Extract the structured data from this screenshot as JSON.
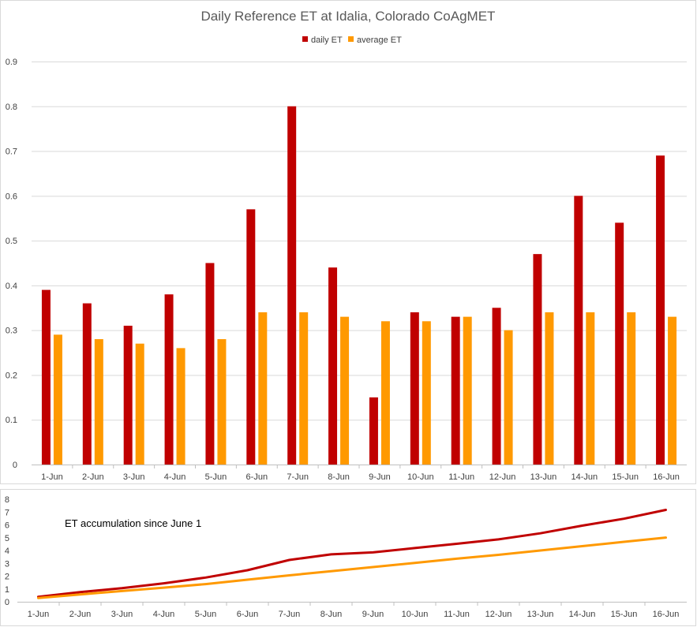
{
  "chart_data": [
    {
      "type": "bar",
      "title": "Daily Reference ET at Idalia, Colorado CoAgMET",
      "xlabel": "",
      "ylabel": "",
      "categories": [
        "1-Jun",
        "2-Jun",
        "3-Jun",
        "4-Jun",
        "5-Jun",
        "6-Jun",
        "7-Jun",
        "8-Jun",
        "9-Jun",
        "10-Jun",
        "11-Jun",
        "12-Jun",
        "13-Jun",
        "14-Jun",
        "15-Jun",
        "16-Jun"
      ],
      "series": [
        {
          "name": "daily ET",
          "color": "#c00000",
          "values": [
            0.39,
            0.36,
            0.31,
            0.38,
            0.45,
            0.57,
            0.8,
            0.44,
            0.15,
            0.34,
            0.33,
            0.35,
            0.47,
            0.6,
            0.54,
            0.69
          ]
        },
        {
          "name": "average ET",
          "color": "#ff9900",
          "values": [
            0.29,
            0.28,
            0.27,
            0.26,
            0.28,
            0.34,
            0.34,
            0.33,
            0.32,
            0.32,
            0.33,
            0.3,
            0.34,
            0.34,
            0.34,
            0.33
          ]
        }
      ],
      "ylim": [
        0,
        0.9
      ],
      "yticks": [
        "0",
        "0.1",
        "0.2",
        "0.3",
        "0.4",
        "0.5",
        "0.6",
        "0.7",
        "0.8",
        "0.9"
      ],
      "grid": true,
      "legend_position": "top-center"
    },
    {
      "type": "line",
      "title": "",
      "annotation": "ET accumulation since June 1",
      "xlabel": "",
      "ylabel": "",
      "categories": [
        "1-Jun",
        "2-Jun",
        "3-Jun",
        "4-Jun",
        "5-Jun",
        "6-Jun",
        "7-Jun",
        "8-Jun",
        "9-Jun",
        "10-Jun",
        "11-Jun",
        "12-Jun",
        "13-Jun",
        "14-Jun",
        "15-Jun",
        "16-Jun"
      ],
      "series": [
        {
          "color": "#c00000",
          "values": [
            0.39,
            0.75,
            1.06,
            1.44,
            1.89,
            2.46,
            3.26,
            3.7,
            3.85,
            4.19,
            4.52,
            4.87,
            5.34,
            5.94,
            6.48,
            7.17
          ]
        },
        {
          "color": "#ff9900",
          "values": [
            0.29,
            0.57,
            0.84,
            1.1,
            1.38,
            1.72,
            2.06,
            2.39,
            2.71,
            3.03,
            3.36,
            3.66,
            4.0,
            4.34,
            4.68,
            5.01
          ]
        }
      ],
      "ylim": [
        0,
        8
      ],
      "yticks": [
        "0",
        "1",
        "2",
        "3",
        "4",
        "5",
        "6",
        "7",
        "8"
      ],
      "grid": false,
      "legend_position": "none"
    }
  ]
}
